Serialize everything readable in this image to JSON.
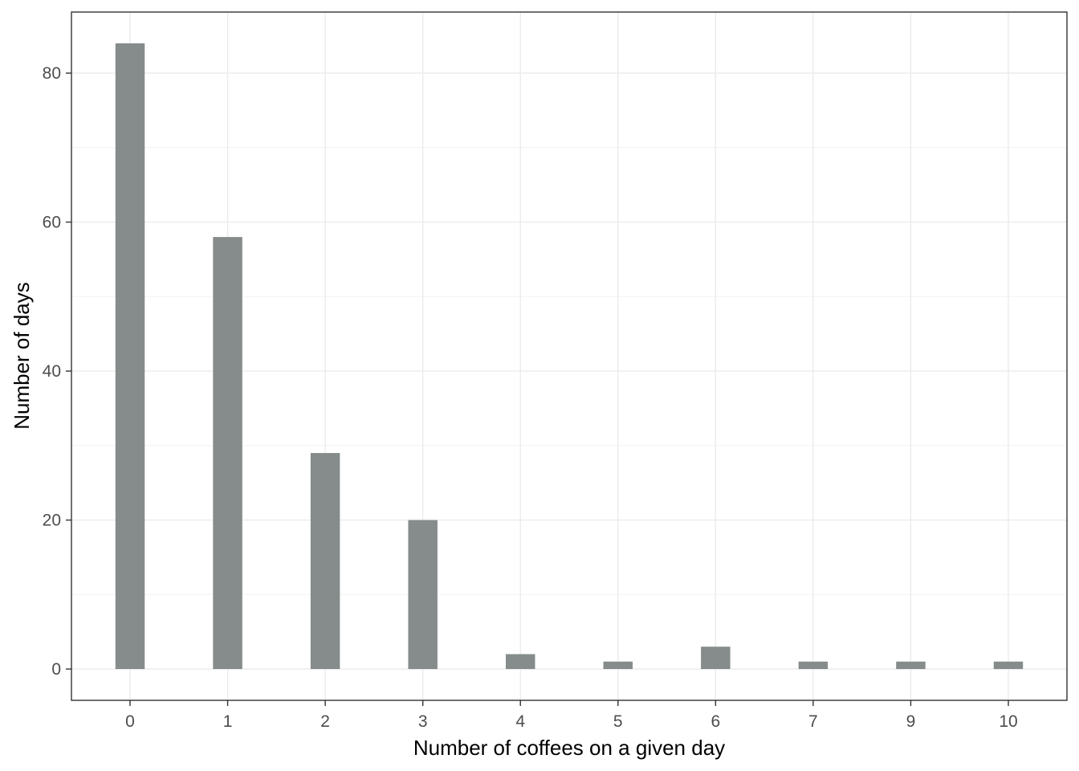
{
  "chart_data": {
    "type": "bar",
    "title": "",
    "xlabel": "Number of coffees on a given day",
    "ylabel": "Number of days",
    "categories": [
      "0",
      "1",
      "2",
      "3",
      "4",
      "5",
      "6",
      "7",
      "9",
      "10"
    ],
    "values": [
      84,
      58,
      29,
      20,
      2,
      1,
      3,
      1,
      1,
      1
    ],
    "ylim": [
      -4.2,
      88.2
    ],
    "yticks": [
      0,
      20,
      40,
      60,
      80
    ],
    "grid": true,
    "legend": "none",
    "bar_color": "#858c8b"
  }
}
